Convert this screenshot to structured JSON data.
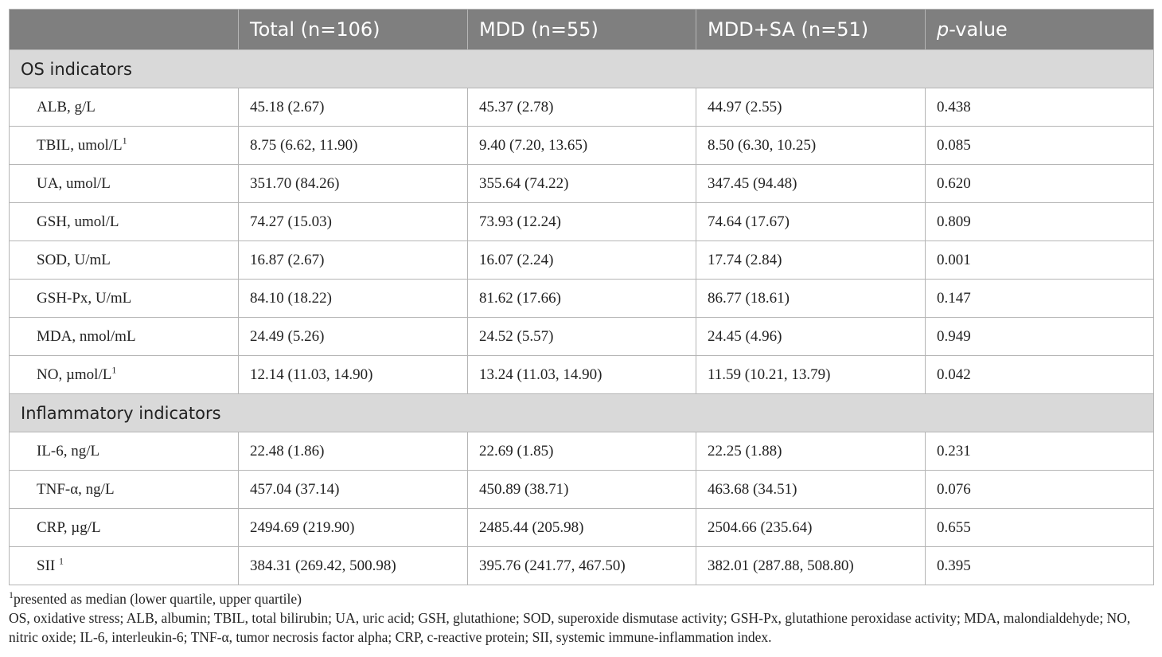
{
  "header": {
    "col1": "",
    "col2": "Total (n=106)",
    "col3": "MDD (n=55)",
    "col4": "MDD+SA (n=51)",
    "col5_italic": "p",
    "col5_rest": "-value"
  },
  "sections": [
    {
      "title": "OS indicators",
      "rows": [
        {
          "label": "ALB, g/L",
          "sup": "",
          "total": "45.18 (2.67)",
          "mdd": "45.37 (2.78)",
          "mddsa": "44.97 (2.55)",
          "p": "0.438"
        },
        {
          "label": "TBIL, umol/L",
          "sup": "1",
          "total": "8.75 (6.62, 11.90)",
          "mdd": "9.40 (7.20, 13.65)",
          "mddsa": "8.50 (6.30, 10.25)",
          "p": "0.085"
        },
        {
          "label": "UA, umol/L",
          "sup": "",
          "total": "351.70 (84.26)",
          "mdd": "355.64 (74.22)",
          "mddsa": "347.45 (94.48)",
          "p": "0.620"
        },
        {
          "label": "GSH, umol/L",
          "sup": "",
          "total": "74.27 (15.03)",
          "mdd": "73.93 (12.24)",
          "mddsa": "74.64 (17.67)",
          "p": "0.809"
        },
        {
          "label": "SOD, U/mL",
          "sup": "",
          "total": "16.87 (2.67)",
          "mdd": "16.07 (2.24)",
          "mddsa": "17.74 (2.84)",
          "p": "0.001"
        },
        {
          "label": "GSH-Px, U/mL",
          "sup": "",
          "total": "84.10 (18.22)",
          "mdd": "81.62 (17.66)",
          "mddsa": "86.77 (18.61)",
          "p": "0.147"
        },
        {
          "label": "MDA, nmol/mL",
          "sup": "",
          "total": "24.49 (5.26)",
          "mdd": "24.52 (5.57)",
          "mddsa": "24.45 (4.96)",
          "p": "0.949"
        },
        {
          "label": "NO, µmol/L",
          "sup": "1",
          "total": "12.14 (11.03, 14.90)",
          "mdd": "13.24 (11.03, 14.90)",
          "mddsa": "11.59 (10.21, 13.79)",
          "p": "0.042"
        }
      ]
    },
    {
      "title": "Inflammatory indicators",
      "rows": [
        {
          "label": "IL-6, ng/L",
          "sup": "",
          "total": "22.48 (1.86)",
          "mdd": "22.69 (1.85)",
          "mddsa": "22.25 (1.88)",
          "p": "0.231"
        },
        {
          "label": "TNF-α, ng/L",
          "sup": "",
          "total": "457.04 (37.14)",
          "mdd": "450.89 (38.71)",
          "mddsa": "463.68 (34.51)",
          "p": "0.076"
        },
        {
          "label": "CRP, µg/L",
          "sup": "",
          "total": "2494.69 (219.90)",
          "mdd": "2485.44 (205.98)",
          "mddsa": "2504.66 (235.64)",
          "p": "0.655"
        },
        {
          "label": "SII ",
          "sup": "1",
          "total": "384.31 (269.42, 500.98)",
          "mdd": "395.76 (241.77, 467.50)",
          "mddsa": "382.01 (287.88, 508.80)",
          "p": "0.395"
        }
      ]
    }
  ],
  "footnotes": {
    "note1_sup": "1",
    "note1_text": "presented as median (lower quartile, upper quartile)",
    "abbreviations": "OS, oxidative stress; ALB, albumin; TBIL, total bilirubin; UA, uric acid; GSH, glutathione; SOD, superoxide dismutase activity; GSH-Px, glutathione peroxidase activity; MDA, malondialdehyde; NO, nitric oxide; IL-6, interleukin-6; TNF-α, tumor necrosis factor alpha; CRP, c-reactive protein; SII, systemic immune-inflammation index."
  }
}
